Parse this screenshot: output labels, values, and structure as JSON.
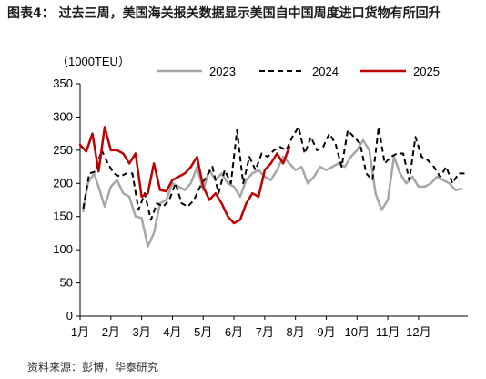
{
  "header": {
    "title": "图表4：  过去三周，美国海关报关数据显示美国自中国周度进口货物有所回升",
    "source": "资料来源：彭博，华泰研究"
  },
  "chart_data": {
    "type": "line",
    "unit": "（1000TEU）",
    "ylim": [
      0,
      350
    ],
    "yticks": [
      0,
      50,
      100,
      150,
      200,
      250,
      300,
      350
    ],
    "xlim": [
      1,
      13.6
    ],
    "xticks": [
      {
        "label": "1月",
        "pos": 1
      },
      {
        "label": "2月",
        "pos": 2
      },
      {
        "label": "3月",
        "pos": 3
      },
      {
        "label": "4月",
        "pos": 4
      },
      {
        "label": "5月",
        "pos": 5
      },
      {
        "label": "6月",
        "pos": 6
      },
      {
        "label": "7月",
        "pos": 7
      },
      {
        "label": "8月",
        "pos": 8
      },
      {
        "label": "9月",
        "pos": 9
      },
      {
        "label": "10月",
        "pos": 10
      },
      {
        "label": "11月",
        "pos": 11
      },
      {
        "label": "12月",
        "pos": 12
      }
    ],
    "legend_position": "top",
    "grid": false,
    "series": [
      {
        "name": "2023",
        "color": "#a6a6a6",
        "dash": "solid",
        "width": 2.5,
        "x": [
          1.1,
          1.25,
          1.45,
          1.6,
          1.8,
          2.0,
          2.2,
          2.4,
          2.6,
          2.8,
          3.0,
          3.2,
          3.4,
          3.6,
          3.8,
          4.0,
          4.2,
          4.4,
          4.6,
          4.8,
          5.0,
          5.2,
          5.4,
          5.6,
          5.8,
          6.0,
          6.2,
          6.4,
          6.6,
          6.8,
          7.0,
          7.2,
          7.4,
          7.6,
          7.8,
          8.0,
          8.2,
          8.4,
          8.6,
          8.8,
          9.0,
          9.2,
          9.4,
          9.6,
          9.8,
          10.0,
          10.2,
          10.4,
          10.6,
          10.8,
          11.0,
          11.2,
          11.4,
          11.6,
          11.8,
          12.0,
          12.2,
          12.4,
          12.6,
          12.8,
          13.0,
          13.2,
          13.4
        ],
        "y": [
          158,
          200,
          215,
          195,
          165,
          195,
          205,
          185,
          180,
          150,
          148,
          105,
          125,
          170,
          175,
          200,
          195,
          190,
          200,
          225,
          190,
          220,
          205,
          215,
          200,
          195,
          180,
          205,
          215,
          220,
          210,
          205,
          220,
          240,
          230,
          220,
          225,
          200,
          210,
          225,
          220,
          225,
          230,
          225,
          240,
          250,
          265,
          250,
          185,
          160,
          175,
          240,
          215,
          200,
          210,
          195,
          195,
          200,
          210,
          205,
          200,
          190,
          192
        ]
      },
      {
        "name": "2024",
        "color": "#000000",
        "dash": "6,4",
        "width": 2,
        "x": [
          1.1,
          1.3,
          1.5,
          1.7,
          1.9,
          2.1,
          2.3,
          2.5,
          2.7,
          2.9,
          3.1,
          3.3,
          3.5,
          3.7,
          3.9,
          4.1,
          4.3,
          4.5,
          4.7,
          4.9,
          5.1,
          5.3,
          5.5,
          5.7,
          5.9,
          6.1,
          6.3,
          6.5,
          6.7,
          6.9,
          7.1,
          7.3,
          7.5,
          7.7,
          7.9,
          8.1,
          8.3,
          8.5,
          8.7,
          8.9,
          9.1,
          9.3,
          9.5,
          9.7,
          9.9,
          10.1,
          10.3,
          10.5,
          10.7,
          10.9,
          11.1,
          11.3,
          11.5,
          11.7,
          11.9,
          12.1,
          12.3,
          12.5,
          12.7,
          12.9,
          13.1,
          13.3,
          13.5
        ],
        "y": [
          162,
          215,
          218,
          250,
          230,
          215,
          210,
          215,
          215,
          160,
          185,
          145,
          170,
          165,
          175,
          200,
          170,
          165,
          175,
          195,
          210,
          225,
          185,
          220,
          200,
          280,
          200,
          240,
          220,
          245,
          240,
          250,
          255,
          250,
          270,
          285,
          245,
          270,
          250,
          255,
          275,
          260,
          225,
          280,
          270,
          260,
          215,
          205,
          285,
          230,
          240,
          245,
          245,
          205,
          270,
          240,
          235,
          225,
          210,
          225,
          200,
          215,
          215
        ]
      },
      {
        "name": "2025",
        "color": "#c00000",
        "dash": "solid",
        "width": 2.5,
        "x": [
          1.0,
          1.2,
          1.4,
          1.6,
          1.8,
          2.0,
          2.2,
          2.4,
          2.6,
          2.8,
          3.0,
          3.2,
          3.4,
          3.6,
          3.8,
          4.0,
          4.2,
          4.4,
          4.6,
          4.8,
          5.0,
          5.2,
          5.4,
          5.6,
          5.8,
          6.0,
          6.2,
          6.4,
          6.6,
          6.8,
          7.0,
          7.2,
          7.4,
          7.6,
          7.8
        ],
        "y": [
          258,
          248,
          275,
          218,
          285,
          250,
          250,
          245,
          230,
          245,
          180,
          185,
          230,
          190,
          188,
          205,
          210,
          215,
          225,
          240,
          195,
          175,
          185,
          170,
          150,
          140,
          145,
          170,
          185,
          180,
          220,
          230,
          245,
          230,
          255
        ]
      }
    ]
  }
}
